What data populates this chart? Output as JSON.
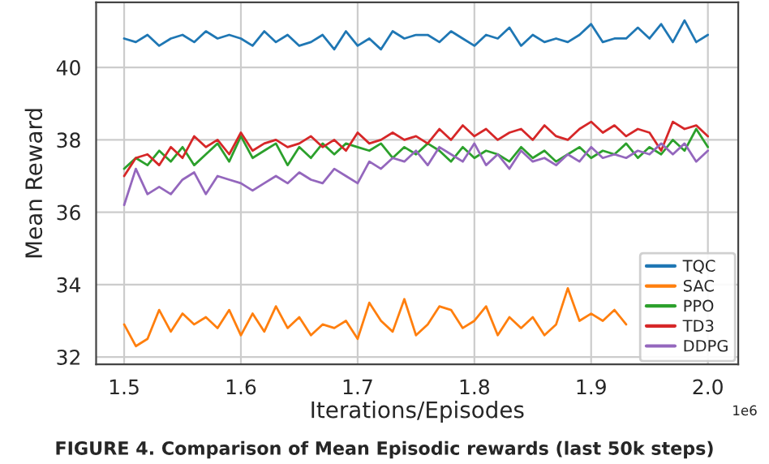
{
  "chart_data": {
    "type": "line",
    "xlabel": "Iterations/Episodes",
    "ylabel": "Mean Reward",
    "annotations": [
      "1e6",
      "FIGURE 4. Comparison of Mean Episodic rewards (last 50k steps)"
    ],
    "x": [
      1.5,
      1.51,
      1.52,
      1.53,
      1.54,
      1.55,
      1.56,
      1.57,
      1.58,
      1.59,
      1.6,
      1.61,
      1.62,
      1.63,
      1.64,
      1.65,
      1.66,
      1.67,
      1.68,
      1.69,
      1.7,
      1.71,
      1.72,
      1.73,
      1.74,
      1.75,
      1.76,
      1.77,
      1.78,
      1.79,
      1.8,
      1.81,
      1.82,
      1.83,
      1.84,
      1.85,
      1.86,
      1.87,
      1.88,
      1.89,
      1.9,
      1.91,
      1.92,
      1.93,
      1.94,
      1.95,
      1.96,
      1.97,
      1.98,
      1.99,
      2.0
    ],
    "series": [
      {
        "name": "TQC",
        "color": "#1f77b4",
        "values": [
          40.8,
          40.7,
          40.9,
          40.6,
          40.8,
          40.9,
          40.7,
          41.0,
          40.8,
          40.9,
          40.8,
          40.6,
          41.0,
          40.7,
          40.9,
          40.6,
          40.7,
          40.9,
          40.5,
          41.0,
          40.6,
          40.8,
          40.5,
          41.0,
          40.8,
          40.9,
          40.9,
          40.7,
          41.0,
          40.8,
          40.6,
          40.9,
          40.8,
          41.1,
          40.6,
          40.9,
          40.7,
          40.8,
          40.7,
          40.9,
          41.2,
          40.7,
          40.8,
          40.8,
          41.1,
          40.8,
          41.2,
          40.7,
          41.3,
          40.7,
          40.9
        ]
      },
      {
        "name": "SAC",
        "color": "#ff7f0e",
        "values": [
          32.9,
          32.3,
          32.5,
          33.3,
          32.7,
          33.2,
          32.9,
          33.1,
          32.8,
          33.3,
          32.6,
          33.2,
          32.7,
          33.4,
          32.8,
          33.1,
          32.6,
          32.9,
          32.8,
          33.0,
          32.5,
          33.5,
          33.0,
          32.7,
          33.6,
          32.6,
          32.9,
          33.4,
          33.3,
          32.8,
          33.0,
          33.4,
          32.6,
          33.1,
          32.8,
          33.1,
          32.6,
          32.9,
          33.9,
          33.0,
          33.2,
          33.0,
          33.3,
          32.9,
          null,
          null,
          null,
          null,
          null,
          null,
          null
        ]
      },
      {
        "name": "PPO",
        "color": "#2ca02c",
        "values": [
          37.2,
          37.5,
          37.3,
          37.7,
          37.4,
          37.8,
          37.3,
          37.6,
          37.9,
          37.4,
          38.1,
          37.5,
          37.7,
          37.9,
          37.3,
          37.8,
          37.5,
          37.9,
          37.6,
          37.9,
          37.8,
          37.7,
          37.9,
          37.5,
          37.8,
          37.6,
          37.9,
          37.7,
          37.4,
          37.8,
          37.5,
          37.7,
          37.6,
          37.4,
          37.8,
          37.5,
          37.7,
          37.4,
          37.6,
          37.8,
          37.5,
          37.7,
          37.6,
          37.9,
          37.5,
          37.8,
          37.6,
          38.0,
          37.7,
          38.3,
          37.8
        ]
      },
      {
        "name": "TD3",
        "color": "#d62728",
        "values": [
          37.0,
          37.5,
          37.6,
          37.3,
          37.8,
          37.5,
          38.1,
          37.8,
          38.0,
          37.6,
          38.2,
          37.7,
          37.9,
          38.0,
          37.8,
          37.9,
          38.1,
          37.8,
          38.0,
          37.7,
          38.2,
          37.9,
          38.0,
          38.2,
          38.0,
          38.1,
          37.9,
          38.3,
          38.0,
          38.4,
          38.1,
          38.3,
          38.0,
          38.2,
          38.3,
          38.0,
          38.4,
          38.1,
          38.0,
          38.3,
          38.5,
          38.2,
          38.4,
          38.1,
          38.3,
          38.2,
          37.7,
          38.5,
          38.3,
          38.4,
          38.1
        ]
      },
      {
        "name": "DDPG",
        "color": "#9467bd",
        "values": [
          36.2,
          37.2,
          36.5,
          36.7,
          36.5,
          36.9,
          37.1,
          36.5,
          37.0,
          36.9,
          36.8,
          36.6,
          36.8,
          37.0,
          36.8,
          37.1,
          36.9,
          36.8,
          37.2,
          37.0,
          36.8,
          37.4,
          37.2,
          37.5,
          37.4,
          37.7,
          37.3,
          37.8,
          37.6,
          37.4,
          37.9,
          37.3,
          37.6,
          37.2,
          37.7,
          37.4,
          37.5,
          37.3,
          37.6,
          37.4,
          37.8,
          37.5,
          37.6,
          37.5,
          37.7,
          37.6,
          37.9,
          37.6,
          37.9,
          37.4,
          37.7
        ]
      }
    ],
    "xlim": [
      1.476,
      2.026
    ],
    "ylim": [
      31.8,
      41.8
    ],
    "xticks": [
      {
        "value": 1.5,
        "label": "1.5"
      },
      {
        "value": 1.6,
        "label": "1.6"
      },
      {
        "value": 1.7,
        "label": "1.7"
      },
      {
        "value": 1.8,
        "label": "1.8"
      },
      {
        "value": 1.9,
        "label": "1.9"
      },
      {
        "value": 2.0,
        "label": "2.0"
      }
    ],
    "yticks": [
      32,
      34,
      36,
      38,
      40
    ],
    "grid": true,
    "legend": "bottom right"
  }
}
